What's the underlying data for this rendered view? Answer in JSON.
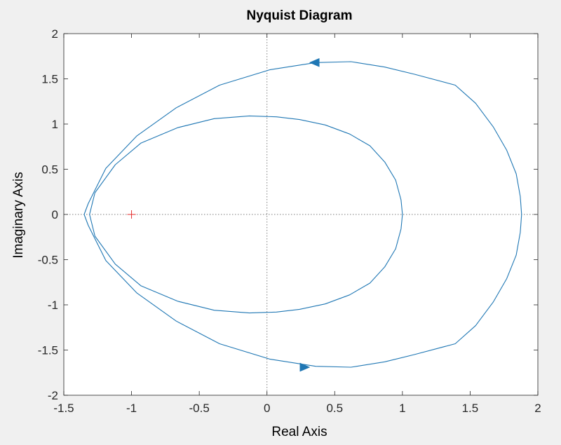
{
  "chart_data": {
    "type": "line",
    "title": "Nyquist Diagram",
    "xlabel": "Real Axis",
    "ylabel": "Imaginary Axis",
    "xlim": [
      -1.5,
      2
    ],
    "ylim": [
      -2,
      2
    ],
    "xticks": [
      "-1.5",
      "-1",
      "-0.5",
      "0",
      "0.5",
      "1",
      "1.5",
      "2"
    ],
    "yticks": [
      "-2",
      "-1.5",
      "-1",
      "-0.5",
      "0",
      "0.5",
      "1",
      "1.5",
      "2"
    ],
    "grid": false,
    "reference_lines": {
      "x": 0,
      "y": 0,
      "style": "dotted",
      "color": "#7f7f7f"
    },
    "critical_point": {
      "x": -1,
      "y": 0,
      "marker": "+",
      "color": "#e32b2b"
    },
    "series_color": "#1f77b4",
    "series": [
      {
        "x": [
          1.88,
          1.87,
          1.84,
          1.77,
          1.67,
          1.54,
          1.39,
          1.09,
          0.87,
          0.62,
          0.36,
          0.02,
          -0.35,
          -0.67,
          -0.96,
          -1.19,
          -1.32,
          -1.35
        ],
        "y": [
          0.0,
          0.2,
          0.45,
          0.71,
          0.97,
          1.23,
          1.43,
          1.55,
          1.63,
          1.69,
          1.68,
          1.6,
          1.43,
          1.18,
          0.87,
          0.51,
          0.12,
          0.0
        ]
      },
      {
        "x": [
          -1.35,
          -1.32,
          -1.19,
          -0.96,
          -0.67,
          -0.35,
          0.02,
          0.36,
          0.62,
          0.87,
          1.09,
          1.39,
          1.54,
          1.67,
          1.77,
          1.84,
          1.87,
          1.88
        ],
        "y": [
          0.0,
          -0.12,
          -0.51,
          -0.87,
          -1.18,
          -1.43,
          -1.6,
          -1.68,
          -1.69,
          -1.63,
          -1.55,
          -1.43,
          -1.23,
          -0.97,
          -0.71,
          -0.45,
          -0.2,
          0.0
        ]
      },
      {
        "x": [
          1.0,
          0.99,
          0.95,
          0.87,
          0.76,
          0.61,
          0.43,
          0.24,
          0.07,
          -0.13,
          -0.39,
          -0.66,
          -0.93,
          -1.12,
          -1.27,
          -1.31
        ],
        "y": [
          0.0,
          0.16,
          0.38,
          0.58,
          0.76,
          0.89,
          0.99,
          1.05,
          1.08,
          1.09,
          1.06,
          0.96,
          0.79,
          0.55,
          0.24,
          0.0
        ]
      },
      {
        "x": [
          -1.31,
          -1.27,
          -1.12,
          -0.93,
          -0.66,
          -0.39,
          -0.13,
          0.07,
          0.24,
          0.43,
          0.61,
          0.76,
          0.87,
          0.95,
          0.99,
          1.0
        ],
        "y": [
          0.0,
          -0.24,
          -0.55,
          -0.79,
          -0.96,
          -1.06,
          -1.09,
          -1.08,
          -1.05,
          -0.99,
          -0.89,
          -0.76,
          -0.58,
          -0.38,
          -0.16,
          0.0
        ]
      }
    ],
    "direction_arrows": [
      {
        "x": 0.35,
        "y": 1.68,
        "dx": -1,
        "dy": 0
      },
      {
        "x": 0.28,
        "y": -1.69,
        "dx": 1,
        "dy": 0
      }
    ]
  }
}
